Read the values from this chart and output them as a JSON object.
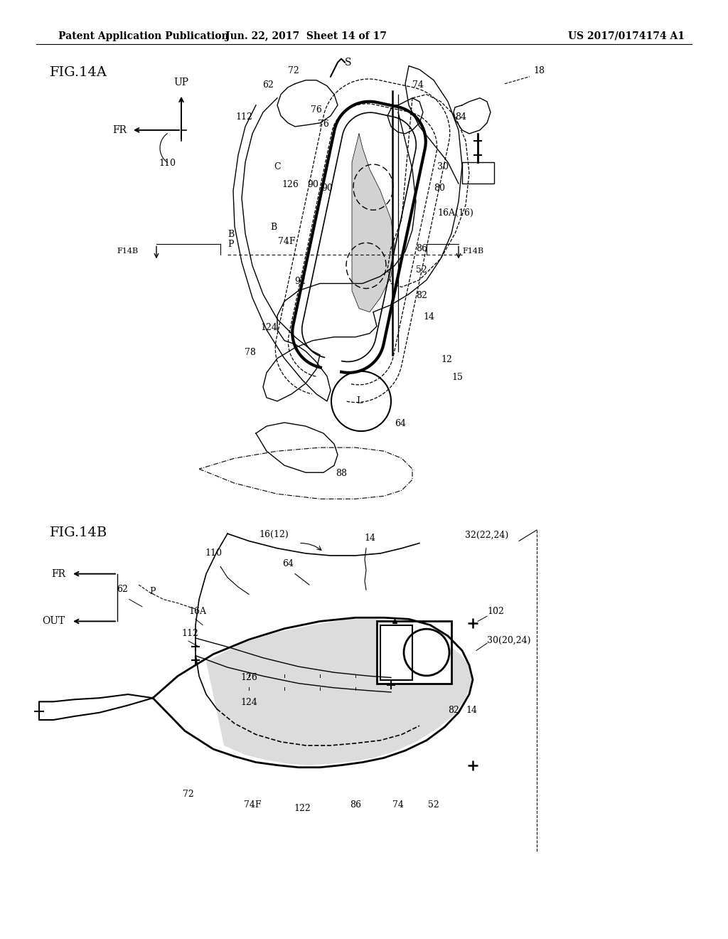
{
  "title_header_left": "Patent Application Publication",
  "title_header_mid": "Jun. 22, 2017  Sheet 14 of 17",
  "title_header_right": "US 2017/0174174 A1",
  "fig_label_a": "FIG.14A",
  "fig_label_b": "FIG.14B",
  "background_color": "#ffffff",
  "line_color": "#000000",
  "gray_fill": "#c0c0c0",
  "font_size_header": 10,
  "font_size_fig": 14,
  "font_size_ref": 9,
  "font_size_dir": 10
}
